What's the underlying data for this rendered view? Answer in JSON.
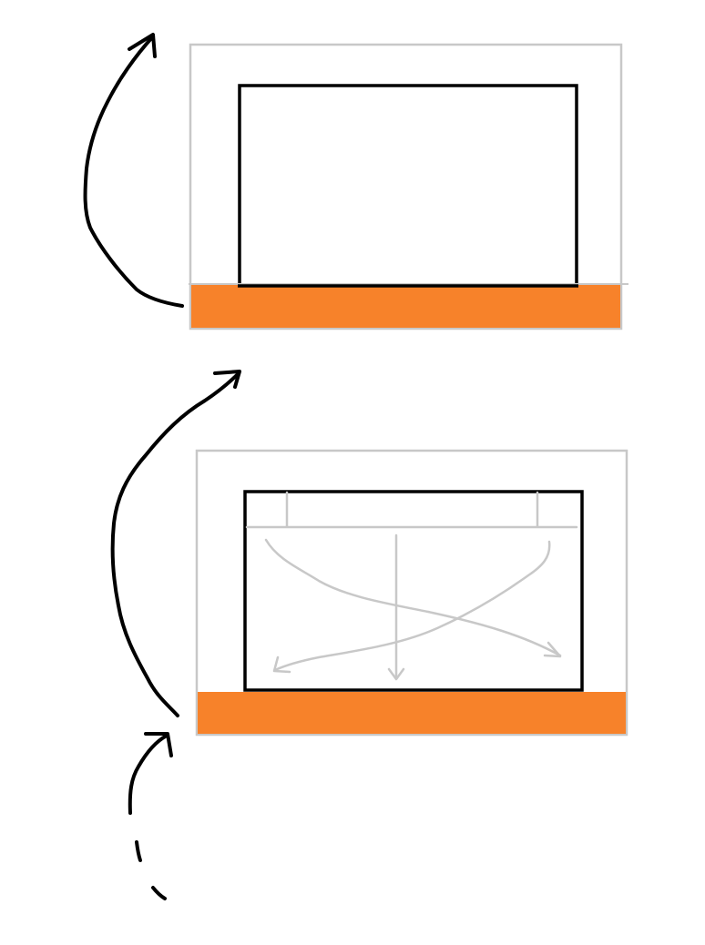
{
  "diagram": {
    "colors": {
      "background": "#ffffff",
      "frame": "#c8c8c8",
      "content_box": "#000000",
      "base_bar": "#f7822a",
      "arrows": "#000000",
      "flow_lines": "#c8c8c8"
    },
    "panels": [
      {
        "id": "top",
        "has_flow_lines": false,
        "arrow": "curved-up-left"
      },
      {
        "id": "bottom",
        "has_flow_lines": true,
        "arrow": "curved-up-left",
        "extra_arrow": "dashed-curve-below"
      }
    ]
  }
}
